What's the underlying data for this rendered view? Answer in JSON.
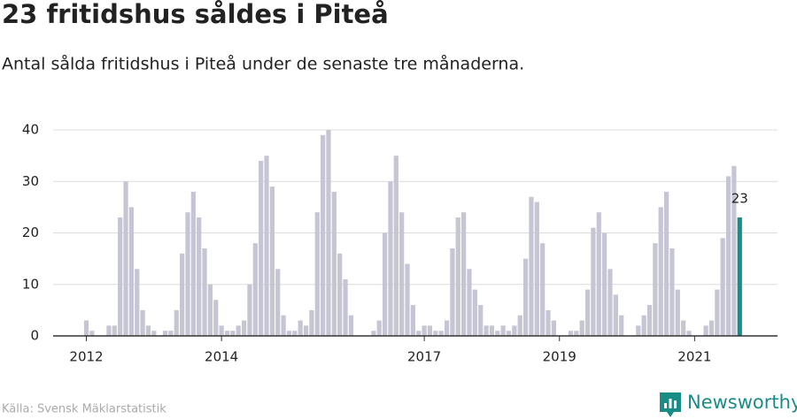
{
  "chart_data": {
    "type": "bar",
    "title": "23 fritidshus såldes i Piteå",
    "subtitle": "Antal sålda fritidshus i Piteå under de senaste tre månaderna.",
    "source": "Källa: Svensk Mäklarstatistik",
    "logo": "Newsworthy",
    "categories": [
      "2012",
      null,
      null,
      null,
      null,
      null,
      null,
      null,
      null,
      null,
      null,
      null,
      null,
      null,
      null,
      null,
      null,
      null,
      null,
      null,
      null,
      null,
      null,
      null,
      "2014",
      null,
      null,
      null,
      null,
      null,
      null,
      null,
      null,
      null,
      null,
      null,
      null,
      null,
      null,
      null,
      null,
      null,
      null,
      null,
      null,
      null,
      null,
      null,
      null,
      null,
      null,
      null,
      null,
      null,
      null,
      null,
      null,
      null,
      null,
      null,
      "2017",
      null,
      null,
      null,
      null,
      null,
      null,
      null,
      null,
      null,
      null,
      null,
      null,
      null,
      null,
      null,
      null,
      null,
      null,
      null,
      null,
      null,
      null,
      null,
      "2019",
      null,
      null,
      null,
      null,
      null,
      null,
      null,
      null,
      null,
      null,
      null,
      null,
      null,
      null,
      null,
      null,
      null,
      null,
      null,
      null,
      null,
      null,
      null,
      "2021",
      null,
      null,
      null,
      null,
      null,
      null,
      null,
      null
    ],
    "values": [
      3,
      1,
      0,
      0,
      2,
      2,
      23,
      30,
      25,
      13,
      5,
      2,
      1,
      0,
      1,
      1,
      5,
      16,
      24,
      28,
      23,
      17,
      10,
      7,
      2,
      1,
      1,
      2,
      3,
      10,
      18,
      34,
      35,
      29,
      13,
      4,
      1,
      1,
      3,
      2,
      5,
      24,
      39,
      40,
      28,
      16,
      11,
      4,
      0,
      0,
      0,
      1,
      3,
      20,
      30,
      35,
      24,
      14,
      6,
      1,
      2,
      2,
      1,
      1,
      3,
      17,
      23,
      24,
      13,
      9,
      6,
      2,
      2,
      1,
      2,
      1,
      2,
      4,
      15,
      27,
      26,
      18,
      5,
      3,
      0,
      0,
      1,
      1,
      3,
      9,
      21,
      24,
      20,
      13,
      8,
      4,
      0,
      0,
      2,
      4,
      6,
      18,
      25,
      28,
      17,
      9,
      3,
      1,
      0,
      0,
      2,
      3,
      9,
      19,
      31,
      33,
      23
    ],
    "color": "#c6c5d3",
    "highlight": {
      "index": 116,
      "color": "#1a8c86"
    },
    "ylim": [
      0,
      40
    ],
    "yticks": [
      0,
      10,
      20,
      30,
      40
    ],
    "grid": true
  }
}
